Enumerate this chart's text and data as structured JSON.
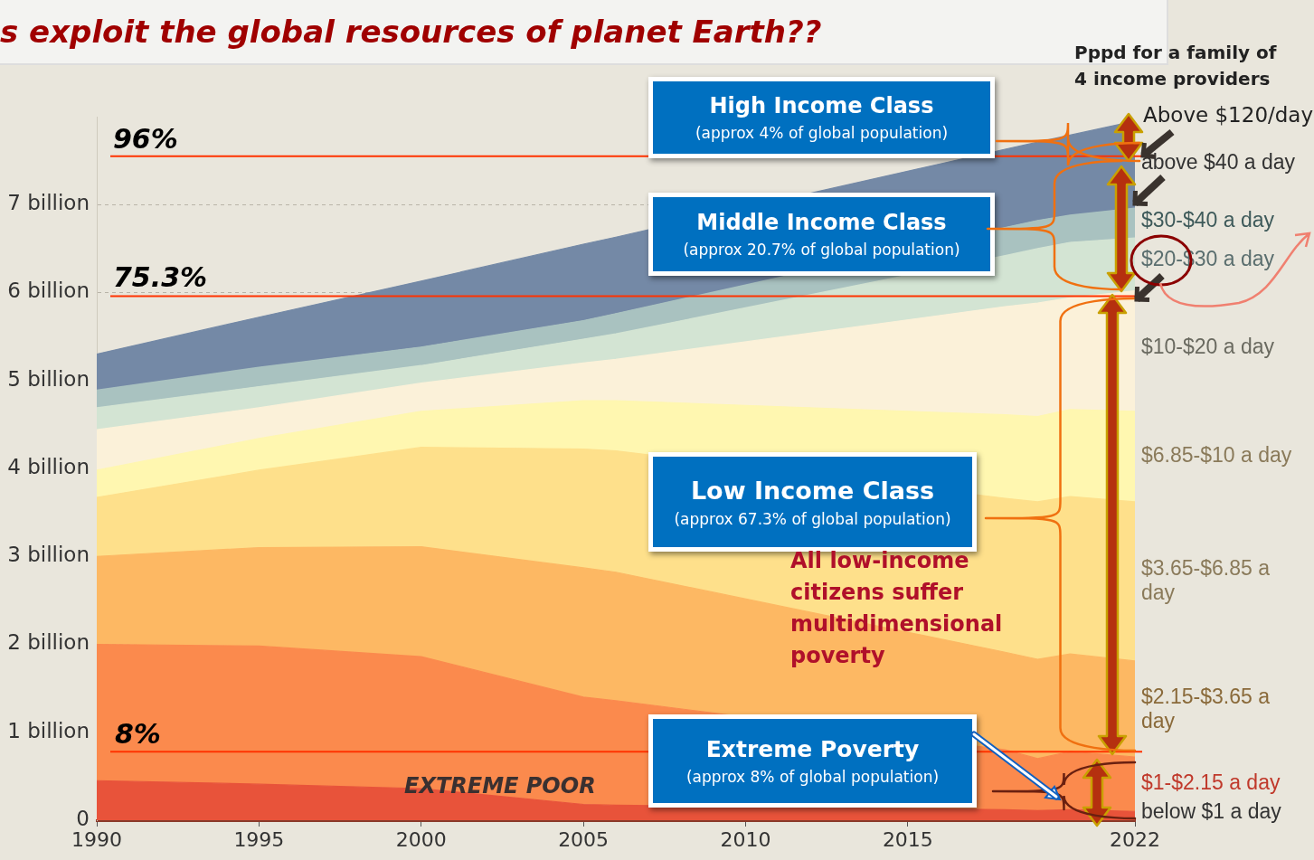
{
  "chart_data": {
    "type": "area",
    "stacked": true,
    "title": "s exploit the global resources of planet Earth??",
    "x": [
      1990,
      1995,
      2000,
      2005,
      2006,
      2018,
      2019,
      2020,
      2022
    ],
    "xlim": [
      1990,
      2022
    ],
    "xticks": [
      1990,
      1995,
      2000,
      2005,
      2010,
      2015,
      2022
    ],
    "ylim": [
      0,
      8
    ],
    "yticks": [
      0,
      {
        "value": 1,
        "label": "1 billion"
      },
      {
        "value": 2,
        "label": "2 billion"
      },
      {
        "value": 3,
        "label": "3 billion"
      },
      {
        "value": 4,
        "label": "4 billion"
      },
      {
        "value": 5,
        "label": "5 billion"
      },
      {
        "value": 6,
        "label": "6 billion"
      },
      {
        "value": 7,
        "label": "7 billion"
      }
    ],
    "grid": "y",
    "legend": false,
    "series": [
      {
        "name": "below $1 a day",
        "color": "#e8533a",
        "values": [
          0.45,
          0.41,
          0.36,
          0.18,
          0.17,
          0.12,
          0.11,
          0.12,
          0.1
        ]
      },
      {
        "name": "$1-$2.15 a day",
        "color": "#fb8a4d",
        "values": [
          1.55,
          1.57,
          1.5,
          1.22,
          1.19,
          0.68,
          0.59,
          0.66,
          0.62
        ]
      },
      {
        "name": "$2.15-$3.65 a day",
        "color": "#fdb863",
        "values": [
          1.0,
          1.12,
          1.25,
          1.47,
          1.46,
          1.11,
          1.13,
          1.11,
          1.09
        ]
      },
      {
        "name": "$3.65-$6.85 a day",
        "color": "#fee08b",
        "values": [
          0.67,
          0.88,
          1.13,
          1.35,
          1.38,
          1.75,
          1.79,
          1.79,
          1.81
        ]
      },
      {
        "name": "$6.85-$10 a day",
        "color": "#fff7b0",
        "values": [
          0.31,
          0.36,
          0.41,
          0.55,
          0.57,
          0.95,
          0.97,
          0.99,
          1.03
        ]
      },
      {
        "name": "$10-$20 a day",
        "color": "#fbf1d9",
        "values": [
          0.46,
          0.35,
          0.32,
          0.43,
          0.47,
          1.23,
          1.29,
          1.27,
          1.37
        ]
      },
      {
        "name": "$20-$30 a day",
        "color": "#d3e4d3",
        "values": [
          0.25,
          0.24,
          0.2,
          0.27,
          0.29,
          0.58,
          0.62,
          0.63,
          0.6
        ]
      },
      {
        "name": "$30-$40 a day",
        "color": "#a9c2c0",
        "values": [
          0.2,
          0.22,
          0.21,
          0.21,
          0.23,
          0.32,
          0.32,
          0.31,
          0.34
        ]
      },
      {
        "name": "above $40 a day",
        "color": "#7489a6",
        "values": [
          0.41,
          0.57,
          0.75,
          0.87,
          0.87,
          0.89,
          0.89,
          0.91,
          0.99
        ]
      }
    ],
    "ref_lines": [
      {
        "axis": "y",
        "value": 0.78,
        "color": "#ff3300"
      },
      {
        "axis": "y",
        "value": 5.96,
        "color": "#ff3300"
      },
      {
        "axis": "y",
        "value": 7.55,
        "color": "#ff3300"
      }
    ],
    "annotations": [
      "Pppd for a family of 4 income providers",
      "Above $120/day",
      "High Income Class",
      "(approx 4% of global population)",
      "Middle Income Class",
      "(approx 20.7% of global population)",
      "Low Income Class",
      "(approx 67.3% of global population)",
      "Extreme Poverty",
      "(approx 8% of global population)",
      "All low-income citizens suffer multidimensional poverty",
      "EXTREME POOR",
      "96%",
      "75.3%",
      "8%"
    ]
  }
}
